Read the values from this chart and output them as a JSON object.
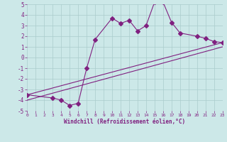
{
  "xlabel": "Windchill (Refroidissement éolien,°C)",
  "xlim": [
    0,
    23
  ],
  "ylim": [
    -5,
    5
  ],
  "xticks": [
    0,
    1,
    2,
    3,
    4,
    5,
    6,
    7,
    8,
    9,
    10,
    11,
    12,
    13,
    14,
    15,
    16,
    17,
    18,
    19,
    20,
    21,
    22,
    23
  ],
  "yticks": [
    -5,
    -4,
    -3,
    -2,
    -1,
    0,
    1,
    2,
    3,
    4,
    5
  ],
  "bg_color": "#cce8e8",
  "line_color": "#802080",
  "grid_color": "#aacccc",
  "line1_x": [
    0,
    3,
    4,
    5,
    6,
    7,
    8,
    10,
    11,
    12,
    13,
    14,
    15,
    16,
    17,
    18,
    20,
    21,
    22,
    23
  ],
  "line1_y": [
    -3.5,
    -3.8,
    -4.0,
    -4.5,
    -4.3,
    -1.0,
    1.7,
    3.7,
    3.2,
    3.5,
    2.5,
    3.0,
    5.2,
    5.2,
    3.3,
    2.3,
    2.0,
    1.8,
    1.5,
    1.4
  ],
  "line2_x": [
    0,
    23
  ],
  "line2_y": [
    -3.5,
    1.4
  ],
  "line3_x": [
    0,
    23
  ],
  "line3_y": [
    -4.0,
    1.0
  ]
}
